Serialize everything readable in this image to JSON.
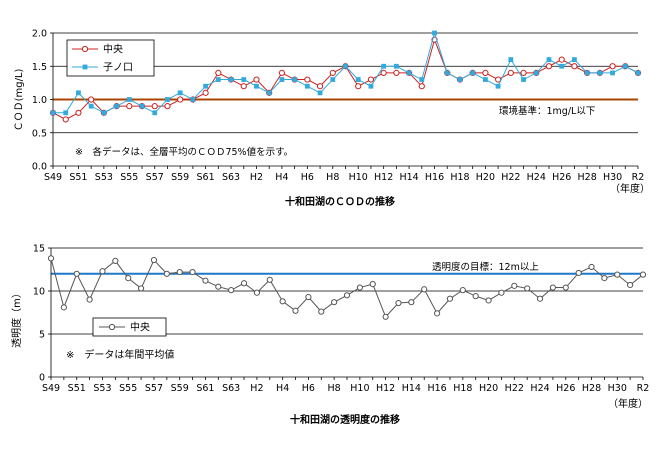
{
  "chart_data": [
    {
      "type": "line",
      "title": "十和田湖のＣＯＤの推移",
      "xlabel": "",
      "ylabel": "ＣＯＤ(mg/L)",
      "x_unit_label": "（年度）",
      "ylim": [
        0,
        2
      ],
      "y_ticks": [
        "0.0",
        "0.5",
        "1.0",
        "1.5",
        "2.0"
      ],
      "grid": true,
      "legend_position": "top-left",
      "x": [
        "S49",
        "S50",
        "S51",
        "S52",
        "S53",
        "S54",
        "S55",
        "S56",
        "S57",
        "S58",
        "S59",
        "S60",
        "S61",
        "S62",
        "S63",
        "H1",
        "H2",
        "H3",
        "H4",
        "H5",
        "H6",
        "H7",
        "H8",
        "H9",
        "H10",
        "H11",
        "H12",
        "H13",
        "H14",
        "H15",
        "H16",
        "H17",
        "H18",
        "H19",
        "H20",
        "H21",
        "H22",
        "H23",
        "H24",
        "H25",
        "H26",
        "H27",
        "H28",
        "H29",
        "H30",
        "R1",
        "R2"
      ],
      "x_tick_labels": [
        "S49",
        "S51",
        "S53",
        "S55",
        "S57",
        "S59",
        "S61",
        "S63",
        "H2",
        "H4",
        "H6",
        "H8",
        "H10",
        "H12",
        "H14",
        "H16",
        "H18",
        "H20",
        "H22",
        "H24",
        "H26",
        "H28",
        "H30",
        "R2"
      ],
      "series": [
        {
          "name": "中央",
          "color": "#cc2222",
          "marker": "open-circle",
          "values": [
            0.8,
            0.7,
            0.8,
            1.0,
            0.8,
            0.9,
            0.9,
            0.9,
            0.9,
            0.9,
            1.0,
            1.0,
            1.1,
            1.4,
            1.3,
            1.2,
            1.3,
            1.1,
            1.4,
            1.3,
            1.3,
            1.2,
            1.4,
            1.5,
            1.2,
            1.3,
            1.4,
            1.4,
            1.4,
            1.2,
            1.9,
            1.4,
            1.3,
            1.4,
            1.4,
            1.3,
            1.4,
            1.4,
            1.4,
            1.5,
            1.6,
            1.5,
            1.4,
            1.4,
            1.5,
            1.5,
            1.4
          ]
        },
        {
          "name": "子ノ口",
          "color": "#33aadd",
          "marker": "filled-square",
          "values": [
            0.8,
            0.8,
            1.1,
            0.9,
            0.8,
            0.9,
            1.0,
            0.9,
            0.8,
            1.0,
            1.1,
            1.0,
            1.2,
            1.3,
            1.3,
            1.3,
            1.2,
            1.1,
            1.3,
            1.3,
            1.2,
            1.1,
            1.3,
            1.5,
            1.3,
            1.2,
            1.5,
            1.5,
            1.4,
            1.3,
            2.0,
            1.4,
            1.3,
            1.4,
            1.3,
            1.2,
            1.6,
            1.3,
            1.4,
            1.6,
            1.5,
            1.6,
            1.4,
            1.4,
            1.4,
            1.5,
            1.4
          ]
        }
      ],
      "reference_line": {
        "value": 1.0,
        "label": "環境基準：1mg/L以下",
        "color": "#aa4400"
      },
      "annotation": "※　各データは、全層平均のＣＯＤ75%値を示す。"
    },
    {
      "type": "line",
      "title": "十和田湖の透明度の推移",
      "xlabel": "",
      "ylabel": "透明度（m）",
      "x_unit_label": "（年度）",
      "ylim": [
        0,
        15
      ],
      "y_ticks": [
        "0",
        "5",
        "10",
        "15"
      ],
      "grid": true,
      "legend_position": "middle-left",
      "x": [
        "S49",
        "S50",
        "S51",
        "S52",
        "S53",
        "S54",
        "S55",
        "S56",
        "S57",
        "S58",
        "S59",
        "S60",
        "S61",
        "S62",
        "S63",
        "H1",
        "H2",
        "H3",
        "H4",
        "H5",
        "H6",
        "H7",
        "H8",
        "H9",
        "H10",
        "H11",
        "H12",
        "H13",
        "H14",
        "H15",
        "H16",
        "H17",
        "H18",
        "H19",
        "H20",
        "H21",
        "H22",
        "H23",
        "H24",
        "H25",
        "H26",
        "H27",
        "H28",
        "H29",
        "H30",
        "R1",
        "R2"
      ],
      "x_tick_labels": [
        "S49",
        "S51",
        "S53",
        "S55",
        "S57",
        "S59",
        "S61",
        "S63",
        "H2",
        "H4",
        "H6",
        "H8",
        "H10",
        "H12",
        "H14",
        "H16",
        "H18",
        "H20",
        "H22",
        "H24",
        "H26",
        "H28",
        "H30",
        "R2"
      ],
      "series": [
        {
          "name": "中央",
          "color": "#555555",
          "marker": "open-circle",
          "values": [
            13.8,
            8.1,
            12.0,
            9.0,
            12.3,
            13.5,
            11.5,
            10.3,
            13.6,
            12.0,
            12.2,
            12.2,
            11.2,
            10.5,
            10.1,
            10.9,
            9.8,
            11.3,
            8.8,
            7.7,
            9.3,
            7.6,
            8.7,
            9.5,
            10.4,
            10.8,
            7.0,
            8.6,
            8.7,
            10.2,
            7.4,
            9.1,
            10.1,
            9.4,
            8.9,
            9.8,
            10.6,
            10.3,
            9.1,
            10.4,
            10.4,
            12.1,
            12.8,
            11.5,
            11.9,
            10.7,
            11.9
          ]
        }
      ],
      "reference_line": {
        "value": 12.0,
        "label": "透明度の目標：12m以上",
        "color": "#1f78c8"
      },
      "annotation": "※　データは年間平均値"
    }
  ]
}
